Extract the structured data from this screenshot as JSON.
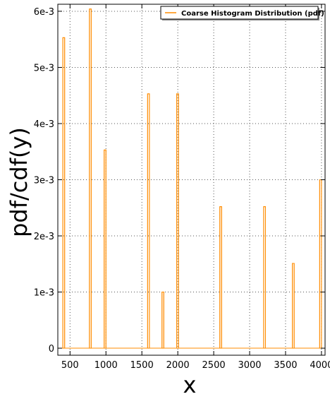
{
  "chart_data": {
    "type": "bar",
    "xlabel": "x",
    "ylabel": "pdf/cdf(y)",
    "xlim": [
      330,
      4050
    ],
    "ylim": [
      -0.000125,
      0.006125
    ],
    "x_ticks": [
      500,
      1000,
      1500,
      2000,
      2500,
      3000,
      3500,
      4000
    ],
    "x_tick_labels": [
      "500",
      "1000",
      "1500",
      "2000",
      "2500",
      "3000",
      "3500",
      "4000"
    ],
    "y_ticks": [
      0,
      0.001,
      0.002,
      0.003,
      0.004,
      0.005,
      0.006
    ],
    "y_tick_labels": [
      "0",
      "1e-3",
      "2e-3",
      "3e-3",
      "4e-3",
      "5e-3",
      "6e-3"
    ],
    "grid": true,
    "legend": {
      "placement": "top-right",
      "entries": [
        "Coarse Histogram Distribution (pdf)"
      ]
    },
    "series": [
      {
        "name": "Coarse Histogram Distribution (pdf)",
        "color": "#ff8c00",
        "bin_width": 25,
        "x": [
          400,
          770,
          975,
          1580,
          1780,
          1985,
          2585,
          3195,
          3595,
          3975
        ],
        "values": [
          0.00553,
          0.00604,
          0.00353,
          0.00453,
          0.001,
          0.00453,
          0.00252,
          0.00252,
          0.00151,
          0.003
        ]
      }
    ]
  }
}
